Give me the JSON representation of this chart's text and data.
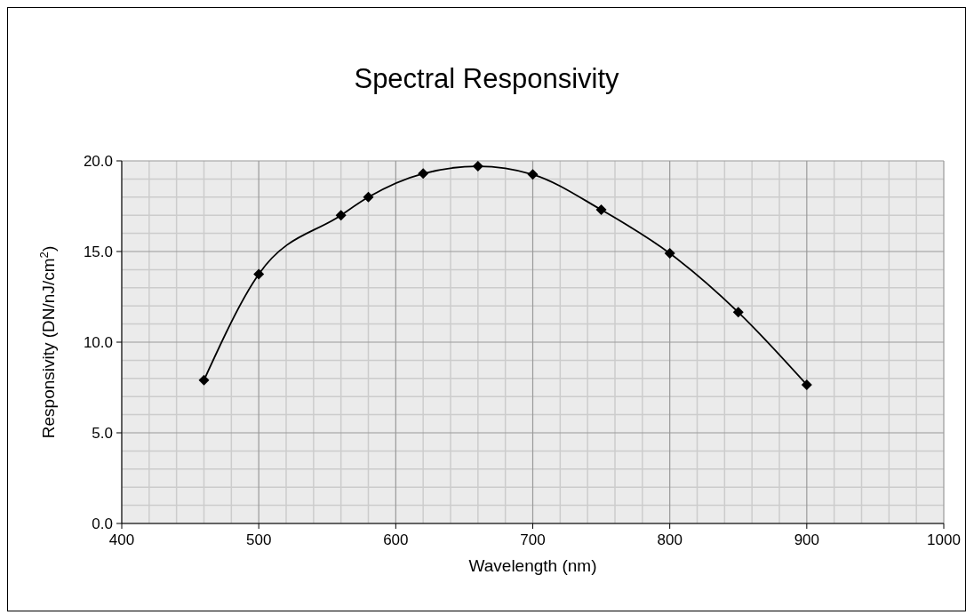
{
  "chart_data": {
    "type": "line",
    "title": "Spectral Responsivity",
    "xlabel": "Wavelength (nm)",
    "ylabel": "Responsivity (DN/nJ/cm$^{2}$)",
    "x": [
      460,
      500,
      560,
      580,
      620,
      660,
      700,
      750,
      800,
      850,
      900
    ],
    "series": [
      {
        "color": "#000000",
        "values": [
          7.9,
          13.75,
          17.0,
          18.0,
          19.3,
          19.7,
          19.25,
          17.3,
          14.9,
          11.65,
          7.65
        ]
      }
    ],
    "marker": "diamond",
    "line_style": "solid",
    "grid": true,
    "legend": false,
    "xlim": [
      400,
      1000
    ],
    "xticks": [
      400,
      {
        "value": 420,
        "label": null
      },
      {
        "value": 440,
        "label": null
      },
      {
        "value": 460,
        "label": null
      },
      {
        "value": 480,
        "label": null
      },
      500,
      {
        "value": 520,
        "label": null
      },
      {
        "value": 540,
        "label": null
      },
      {
        "value": 560,
        "label": null
      },
      {
        "value": 580,
        "label": null
      },
      600,
      {
        "value": 620,
        "label": null
      },
      {
        "value": 640,
        "label": null
      },
      {
        "value": 660,
        "label": null
      },
      {
        "value": 680,
        "label": null
      },
      700,
      {
        "value": 720,
        "label": null
      },
      {
        "value": 740,
        "label": null
      },
      {
        "value": 760,
        "label": null
      },
      {
        "value": 780,
        "label": null
      },
      800,
      {
        "value": 820,
        "label": null
      },
      {
        "value": 840,
        "label": null
      },
      {
        "value": 860,
        "label": null
      },
      {
        "value": 880,
        "label": null
      },
      900,
      {
        "value": 920,
        "label": null
      },
      {
        "value": 940,
        "label": null
      },
      {
        "value": 960,
        "label": null
      },
      {
        "value": 980,
        "label": null
      },
      1000
    ],
    "ylim": [
      0,
      20
    ],
    "yticks": [
      {
        "value": 0,
        "label": "0.0"
      },
      {
        "value": 1,
        "label": null
      },
      {
        "value": 2,
        "label": null
      },
      {
        "value": 3,
        "label": null
      },
      {
        "value": 4,
        "label": null
      },
      {
        "value": 5,
        "label": "5.0"
      },
      {
        "value": 6,
        "label": null
      },
      {
        "value": 7,
        "label": null
      },
      {
        "value": 8,
        "label": null
      },
      {
        "value": 9,
        "label": null
      },
      {
        "value": 10,
        "label": "10.0"
      },
      {
        "value": 11,
        "label": null
      },
      {
        "value": 12,
        "label": null
      },
      {
        "value": 13,
        "label": null
      },
      {
        "value": 14,
        "label": null
      },
      {
        "value": 15,
        "label": "15.0"
      },
      {
        "value": 16,
        "label": null
      },
      {
        "value": 17,
        "label": null
      },
      {
        "value": 18,
        "label": null
      },
      {
        "value": 19,
        "label": null
      },
      {
        "value": 20,
        "label": "20.0"
      }
    ]
  }
}
